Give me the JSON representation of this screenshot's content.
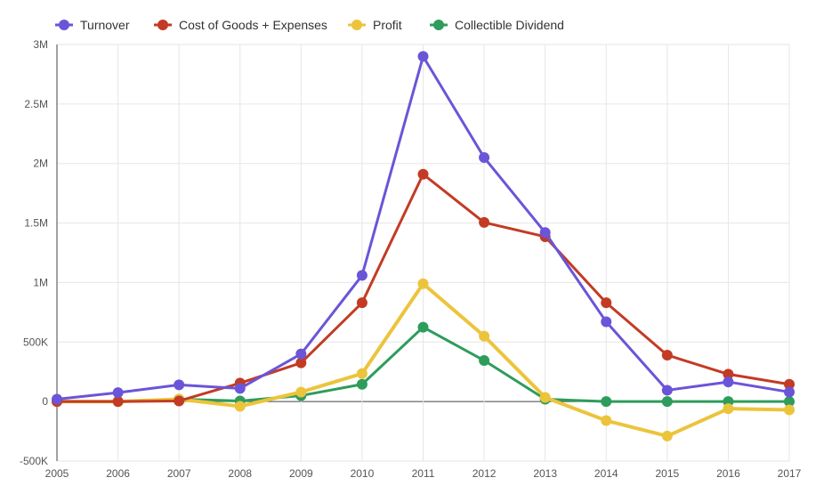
{
  "chart_data": {
    "type": "line",
    "x": [
      "2005",
      "2006",
      "2007",
      "2008",
      "2009",
      "2010",
      "2011",
      "2012",
      "2013",
      "2014",
      "2015",
      "2016",
      "2017"
    ],
    "series": [
      {
        "name": "Turnover",
        "color": "#6a55d8",
        "values": [
          20000,
          75000,
          140000,
          110000,
          400000,
          1060000,
          2900000,
          2050000,
          1420000,
          670000,
          95000,
          165000,
          80000
        ]
      },
      {
        "name": "Cost of Goods + Expenses",
        "color": "#c33b24",
        "values": [
          0,
          0,
          5000,
          155000,
          325000,
          830000,
          1910000,
          1505000,
          1385000,
          830000,
          390000,
          230000,
          145000
        ]
      },
      {
        "name": "Profit",
        "color": "#ecc43c",
        "values": [
          0,
          0,
          20000,
          -40000,
          80000,
          235000,
          990000,
          550000,
          35000,
          -160000,
          -290000,
          -60000,
          -70000
        ]
      },
      {
        "name": "Collectible Dividend",
        "color": "#2e9c5b",
        "values": [
          0,
          0,
          20000,
          5000,
          50000,
          145000,
          625000,
          345000,
          20000,
          0,
          0,
          0,
          0
        ]
      }
    ],
    "yticks": [
      {
        "value": -500000,
        "label": "-500K"
      },
      {
        "value": 0,
        "label": "0"
      },
      {
        "value": 500000,
        "label": "500K"
      },
      {
        "value": 1000000,
        "label": "1M"
      },
      {
        "value": 1500000,
        "label": "1.5M"
      },
      {
        "value": 2000000,
        "label": "2M"
      },
      {
        "value": 2500000,
        "label": "2.5M"
      },
      {
        "value": 3000000,
        "label": "3M"
      }
    ],
    "ylim": [
      -500000,
      3000000
    ],
    "grid": true,
    "legend_position": "top-left"
  }
}
